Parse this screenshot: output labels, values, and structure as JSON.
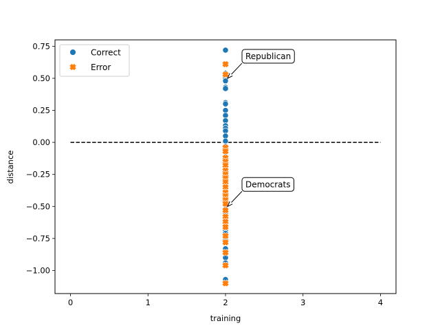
{
  "chart_data": {
    "type": "scatter",
    "title": "",
    "xlabel": "training",
    "ylabel": "distance",
    "xlim": [
      -0.2,
      4.2
    ],
    "ylim": [
      -1.18,
      0.8
    ],
    "x_ticks": [
      0,
      1,
      2,
      3,
      4
    ],
    "x_tick_labels": [
      "0",
      "1",
      "2",
      "3",
      "4"
    ],
    "y_ticks": [
      -1.0,
      -0.75,
      -0.5,
      -0.25,
      0.0,
      0.25,
      0.5,
      0.75
    ],
    "y_tick_labels": [
      "−1.00",
      "−0.75",
      "−0.50",
      "−0.25",
      "0.00",
      "0.25",
      "0.50",
      "0.75"
    ],
    "grid": false,
    "legend_position": "top-left",
    "series": [
      {
        "name": "Correct",
        "marker": "circle",
        "color": "#1f77b4",
        "points": [
          {
            "x": 2,
            "y": 0.72
          },
          {
            "x": 2,
            "y": 0.54
          },
          {
            "x": 2,
            "y": 0.52
          },
          {
            "x": 2,
            "y": 0.5
          },
          {
            "x": 2,
            "y": 0.48
          },
          {
            "x": 2,
            "y": 0.43
          },
          {
            "x": 2,
            "y": 0.42
          },
          {
            "x": 2,
            "y": 0.31
          },
          {
            "x": 2,
            "y": 0.3
          },
          {
            "x": 2,
            "y": 0.25
          },
          {
            "x": 2,
            "y": 0.21
          },
          {
            "x": 2,
            "y": 0.17
          },
          {
            "x": 2,
            "y": 0.13
          },
          {
            "x": 2,
            "y": 0.11
          },
          {
            "x": 2,
            "y": 0.09
          },
          {
            "x": 2,
            "y": 0.05
          },
          {
            "x": 2,
            "y": 0.01
          },
          {
            "x": 2,
            "y": -0.03
          },
          {
            "x": 2,
            "y": -0.11
          },
          {
            "x": 2,
            "y": -0.16
          },
          {
            "x": 2,
            "y": -0.2
          },
          {
            "x": 2,
            "y": -0.25
          },
          {
            "x": 2,
            "y": -0.33
          },
          {
            "x": 2,
            "y": -0.37
          },
          {
            "x": 2,
            "y": -0.43
          },
          {
            "x": 2,
            "y": -0.49
          },
          {
            "x": 2,
            "y": -0.55
          },
          {
            "x": 2,
            "y": -0.6
          },
          {
            "x": 2,
            "y": -0.69
          },
          {
            "x": 2,
            "y": -0.71
          },
          {
            "x": 2,
            "y": -0.76
          },
          {
            "x": 2,
            "y": -0.83
          },
          {
            "x": 2,
            "y": -0.9
          },
          {
            "x": 2,
            "y": -0.94
          },
          {
            "x": 2,
            "y": -1.07
          }
        ]
      },
      {
        "name": "Error",
        "marker": "x",
        "color": "#ff7f0e",
        "points": [
          {
            "x": 2,
            "y": 0.61
          },
          {
            "x": 2,
            "y": 0.53
          },
          {
            "x": 2,
            "y": -0.04
          },
          {
            "x": 2,
            "y": -0.07
          },
          {
            "x": 2,
            "y": -0.12
          },
          {
            "x": 2,
            "y": -0.15
          },
          {
            "x": 2,
            "y": -0.18
          },
          {
            "x": 2,
            "y": -0.22
          },
          {
            "x": 2,
            "y": -0.25
          },
          {
            "x": 2,
            "y": -0.28
          },
          {
            "x": 2,
            "y": -0.31
          },
          {
            "x": 2,
            "y": -0.35
          },
          {
            "x": 2,
            "y": -0.39
          },
          {
            "x": 2,
            "y": -0.42
          },
          {
            "x": 2,
            "y": -0.45
          },
          {
            "x": 2,
            "y": -0.48
          },
          {
            "x": 2,
            "y": -0.53
          },
          {
            "x": 2,
            "y": -0.58
          },
          {
            "x": 2,
            "y": -0.62
          },
          {
            "x": 2,
            "y": -0.66
          },
          {
            "x": 2,
            "y": -0.73
          },
          {
            "x": 2,
            "y": -0.78
          },
          {
            "x": 2,
            "y": -0.86
          },
          {
            "x": 2,
            "y": -0.96
          },
          {
            "x": 2,
            "y": -1.1
          }
        ]
      }
    ],
    "reference_line": {
      "x_start": 0,
      "x_end": 4,
      "y": 0,
      "style": "dashed",
      "color": "#000000"
    },
    "annotations": [
      {
        "text": "Republican",
        "x": 2,
        "y": 0.5
      },
      {
        "text": "Democrats",
        "x": 2,
        "y": -0.5
      }
    ]
  }
}
